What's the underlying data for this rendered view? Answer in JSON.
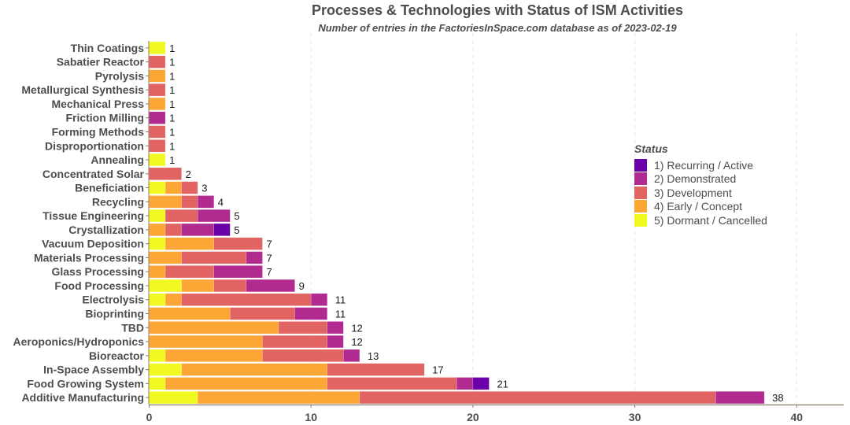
{
  "chart_data": {
    "type": "bar",
    "orientation": "horizontal",
    "stacked": true,
    "title": "Processes & Technologies with Status of ISM Activities",
    "subtitle": "Number of entries in the FactoriesInSpace.com database as of 2023-02-19",
    "xlabel": "",
    "ylabel": "",
    "xlim": [
      0,
      43
    ],
    "xticks": [
      0,
      10,
      20,
      30,
      40
    ],
    "grid": "vertical dashed",
    "legend": {
      "title": "Status",
      "placement": "right",
      "entries": [
        {
          "label": "1)  Recurring / Active",
          "color": "#6a00a8"
        },
        {
          "label": "2)  Demonstrated",
          "color": "#b12a90"
        },
        {
          "label": "3)  Development",
          "color": "#e16462"
        },
        {
          "label": "4)  Early / Concept",
          "color": "#fca636"
        },
        {
          "label": "5)  Dormant / Cancelled",
          "color": "#f0f921"
        }
      ]
    },
    "categories": [
      "Thin Coatings",
      "Sabatier Reactor",
      "Pyrolysis",
      "Metallurgical Synthesis",
      "Mechanical Press",
      "Friction Milling",
      "Forming Methods",
      "Disproportionation",
      "Annealing",
      "Concentrated Solar",
      "Beneficiation",
      "Recycling",
      "Tissue Engineering",
      "Crystallization",
      "Vacuum Deposition",
      "Materials Processing",
      "Glass Processing",
      "Food Processing",
      "Electrolysis",
      "Bioprinting",
      "TBD",
      "Aeroponics/Hydroponics",
      "Bioreactor",
      "In-Space Assembly",
      "Food Growing System",
      "Additive Manufacturing"
    ],
    "series": [
      {
        "name": "5)  Dormant / Cancelled",
        "color": "#f0f921",
        "values": [
          1,
          0,
          0,
          0,
          0,
          0,
          0,
          0,
          1,
          0,
          1,
          0,
          1,
          0,
          1,
          0,
          0,
          2,
          1,
          0,
          0,
          0,
          1,
          2,
          1,
          3
        ]
      },
      {
        "name": "4)  Early / Concept",
        "color": "#fca636",
        "values": [
          0,
          0,
          1,
          0,
          1,
          0,
          0,
          0,
          0,
          0,
          1,
          2,
          0,
          1,
          3,
          2,
          1,
          2,
          1,
          5,
          8,
          7,
          6,
          9,
          10,
          10
        ]
      },
      {
        "name": "3)  Development",
        "color": "#e16462",
        "values": [
          0,
          1,
          0,
          1,
          0,
          0,
          1,
          1,
          0,
          2,
          1,
          1,
          2,
          1,
          3,
          4,
          3,
          2,
          8,
          4,
          3,
          4,
          5,
          6,
          8,
          22
        ]
      },
      {
        "name": "2)  Demonstrated",
        "color": "#b12a90",
        "values": [
          0,
          0,
          0,
          0,
          0,
          1,
          0,
          0,
          0,
          0,
          0,
          1,
          2,
          2,
          0,
          1,
          3,
          3,
          1,
          2,
          1,
          1,
          1,
          0,
          1,
          3
        ]
      },
      {
        "name": "1)  Recurring / Active",
        "color": "#6a00a8",
        "values": [
          0,
          0,
          0,
          0,
          0,
          0,
          0,
          0,
          0,
          0,
          0,
          0,
          0,
          1,
          0,
          0,
          0,
          0,
          0,
          0,
          0,
          0,
          0,
          0,
          1,
          0
        ]
      }
    ],
    "totals": [
      1,
      1,
      1,
      1,
      1,
      1,
      1,
      1,
      1,
      2,
      3,
      4,
      5,
      5,
      7,
      7,
      7,
      9,
      11,
      11,
      12,
      12,
      13,
      17,
      21,
      38
    ]
  }
}
